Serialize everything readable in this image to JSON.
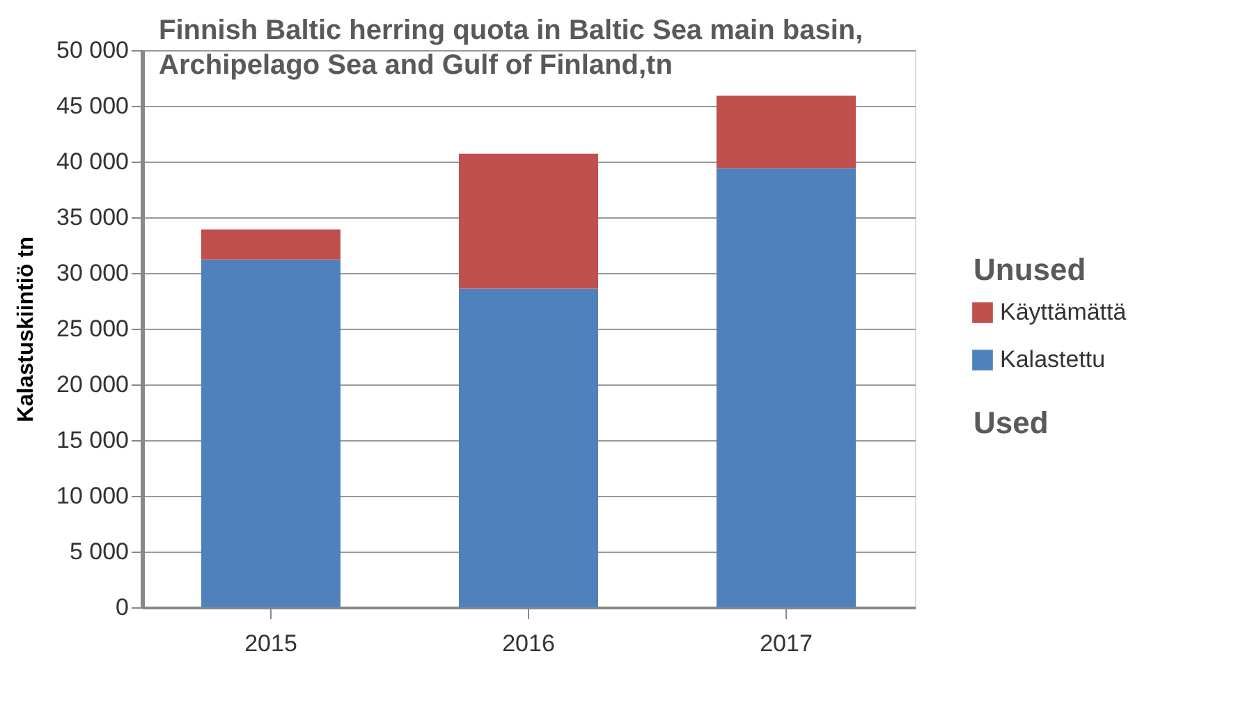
{
  "chart_data": {
    "type": "bar",
    "title": [
      "Finnish Baltic herring quota in Baltic Sea main basin,",
      "Archipelago Sea and Gulf of Finland,tn"
    ],
    "ylabel": "Kalastuskiintiö tn",
    "categories": [
      "2015",
      "2016",
      "2017"
    ],
    "stacked": true,
    "series": [
      {
        "name": "Kalastettu",
        "color": "#4f81bd",
        "values": [
          31200,
          28600,
          39400
        ]
      },
      {
        "name": "Käyttämättä",
        "color": "#c0504d",
        "values": [
          2700,
          12100,
          6500
        ]
      }
    ],
    "ylim": [
      0,
      50000
    ],
    "yticks": [
      0,
      {
        "value": 5000,
        "label": "5 000"
      },
      {
        "value": 10000,
        "label": "10 000"
      },
      {
        "value": 15000,
        "label": "15 000"
      },
      {
        "value": 20000,
        "label": "20 000"
      },
      {
        "value": 25000,
        "label": "25 000"
      },
      {
        "value": 30000,
        "label": "30 000"
      },
      {
        "value": 35000,
        "label": "35 000"
      },
      {
        "value": 40000,
        "label": "40 000"
      },
      {
        "value": 45000,
        "label": "45 000"
      },
      {
        "value": 50000,
        "label": "50 000"
      }
    ],
    "grid": "y",
    "legend": "right",
    "annotations": [
      "Unused",
      "Used"
    ]
  }
}
